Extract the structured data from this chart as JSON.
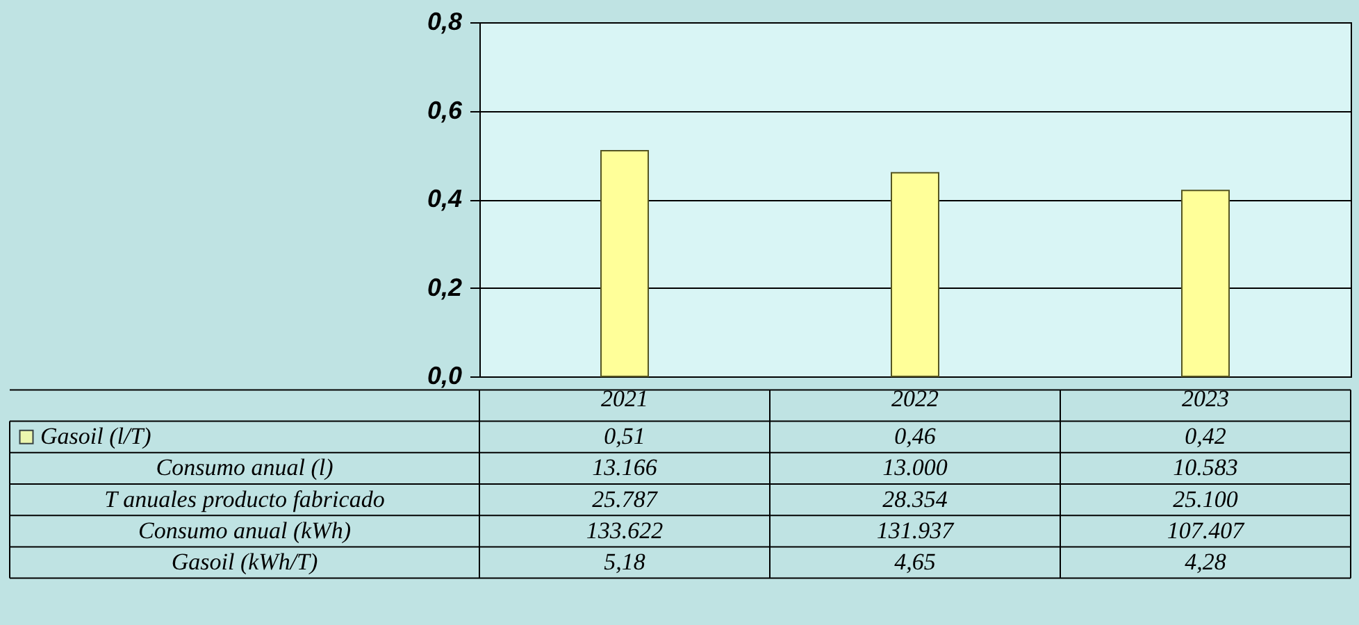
{
  "chart_data": {
    "type": "bar",
    "categories": [
      "2021",
      "2022",
      "2023"
    ],
    "series": [
      {
        "name": "Gasoil (l/T)",
        "color": "#ffff99",
        "values": [
          0.51,
          0.46,
          0.42
        ],
        "value_labels": [
          "0,51",
          "0,46",
          "0,42"
        ]
      }
    ],
    "ylim": [
      0,
      0.8
    ],
    "yticks": [
      {
        "value": 0,
        "label": "0,0"
      },
      {
        "value": 0.2,
        "label": "0,2"
      },
      {
        "value": 0.4,
        "label": "0,4"
      },
      {
        "value": 0.6,
        "label": "0,6"
      },
      {
        "value": 0.8,
        "label": "0,8"
      }
    ],
    "grid": "y",
    "legend": "bottom left",
    "annotations": [
      "Consumo anual (l)",
      "13.166",
      "13.000",
      "10.583",
      "T anuales producto fabricado",
      "25.787",
      "28.354",
      "25.100",
      "Consumo anual (kWh)",
      "133.622",
      "131.937",
      "107.407",
      "Gasoil (kWh/T)",
      "5,18",
      "4,65",
      "4,28"
    ]
  }
}
